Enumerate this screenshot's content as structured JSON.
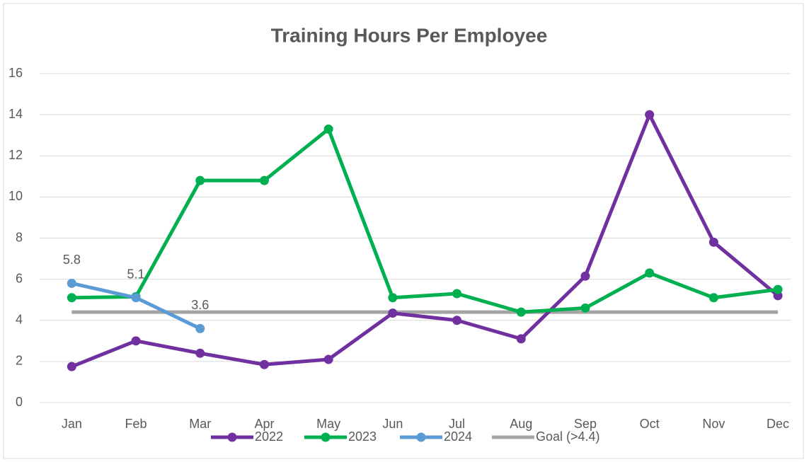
{
  "chart_data": {
    "type": "line",
    "title": "Training Hours Per Employee",
    "categories": [
      "Jan",
      "Feb",
      "Mar",
      "Apr",
      "May",
      "Jun",
      "Jul",
      "Aug",
      "Sep",
      "Oct",
      "Nov",
      "Dec"
    ],
    "series": [
      {
        "name": "2022",
        "color": "#7030a0",
        "markers": true,
        "values": [
          1.75,
          3.0,
          2.4,
          1.85,
          2.1,
          4.35,
          4.0,
          3.1,
          6.15,
          14.0,
          7.8,
          5.2
        ]
      },
      {
        "name": "2023",
        "color": "#00b050",
        "markers": true,
        "values": [
          5.1,
          5.15,
          10.8,
          10.8,
          13.3,
          5.1,
          5.3,
          4.4,
          4.6,
          6.3,
          5.1,
          5.5
        ]
      },
      {
        "name": "2024",
        "color": "#5b9bd5",
        "markers": true,
        "data_labels": true,
        "values": [
          5.8,
          5.1,
          3.6,
          null,
          null,
          null,
          null,
          null,
          null,
          null,
          null,
          null
        ]
      },
      {
        "name": "Goal (>4.4)",
        "color": "#a5a5a5",
        "markers": false,
        "values": [
          4.4,
          4.4,
          4.4,
          4.4,
          4.4,
          4.4,
          4.4,
          4.4,
          4.4,
          4.4,
          4.4,
          4.4
        ]
      }
    ],
    "ylim": [
      0,
      16
    ],
    "yticks": [
      0,
      2,
      4,
      6,
      8,
      10,
      12,
      14,
      16
    ],
    "grid": true,
    "legend": "bottom"
  }
}
